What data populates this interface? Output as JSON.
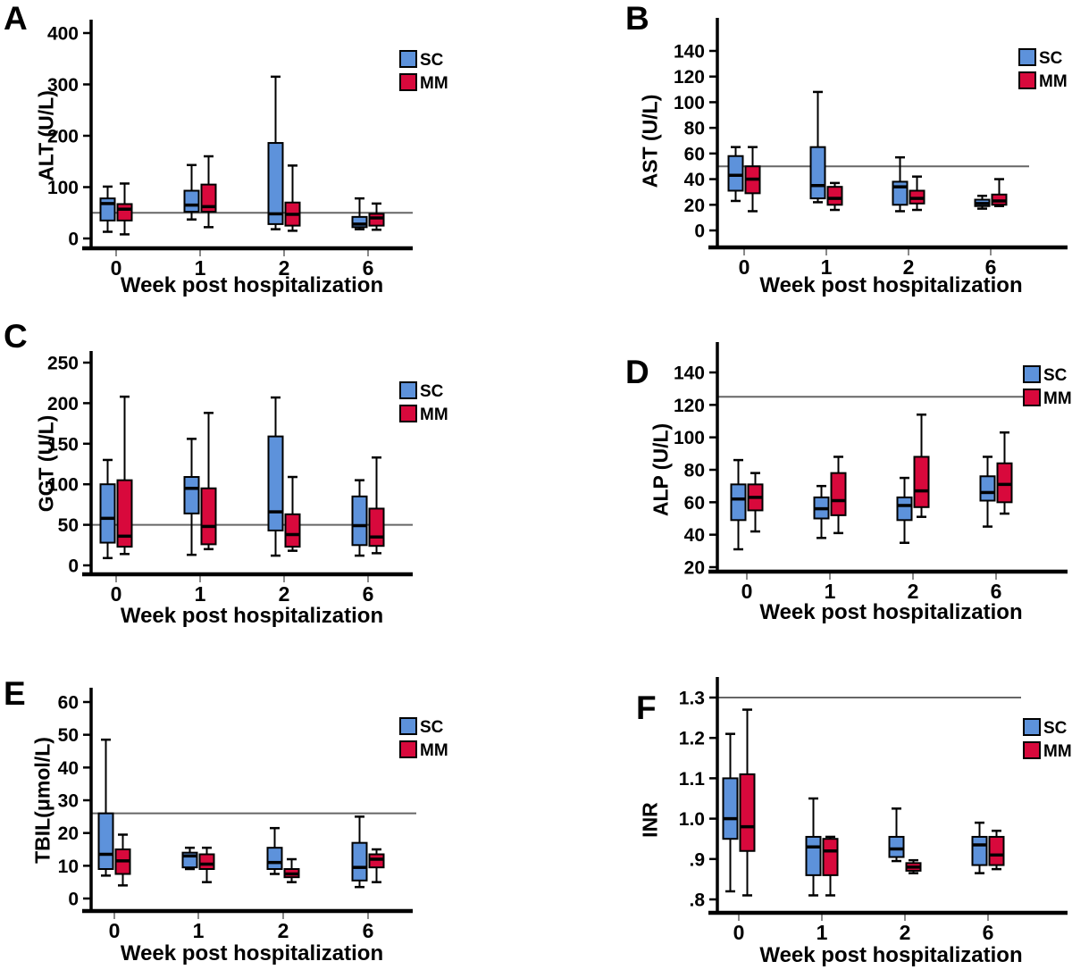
{
  "figure": {
    "legend_labels": [
      "SC",
      "MM"
    ],
    "series_colors": {
      "SC": "#5D92DB",
      "MM": "#D8093C"
    },
    "colors": {
      "box_border": "#000000",
      "median": "#000000",
      "axis": "#000000",
      "reference_line": "#666666",
      "x_tick": "#8a8a8a",
      "background": "#ffffff"
    },
    "xlabel": "Week post hospitalization",
    "week_categories": [
      "0",
      "1",
      "2",
      "6"
    ]
  },
  "chart_data": [
    {
      "type": "box",
      "panel": "A",
      "ylabel": "ALT (U/L)",
      "xlabel": "Week post hospitalization",
      "categories": [
        "0",
        "1",
        "2",
        "6"
      ],
      "ytick_values": [
        0,
        100,
        200,
        300,
        400
      ],
      "ytick_labels": [
        "0",
        "100",
        "200",
        "300",
        "400"
      ],
      "refline": 50,
      "legend": [
        "SC",
        "MM"
      ],
      "series": [
        {
          "name": "SC",
          "boxes": [
            {
              "whislo": 13,
              "q1": 35,
              "med": 68,
              "q3": 78,
              "whishi": 101
            },
            {
              "whislo": 37,
              "q1": 52,
              "med": 65,
              "q3": 93,
              "whishi": 143
            },
            {
              "whislo": 18,
              "q1": 28,
              "med": 48,
              "q3": 186,
              "whishi": 315
            },
            {
              "whislo": 18,
              "q1": 22,
              "med": 28,
              "q3": 42,
              "whishi": 78
            }
          ]
        },
        {
          "name": "MM",
          "boxes": [
            {
              "whislo": 8,
              "q1": 35,
              "med": 57,
              "q3": 67,
              "whishi": 107
            },
            {
              "whislo": 22,
              "q1": 52,
              "med": 62,
              "q3": 105,
              "whishi": 160
            },
            {
              "whislo": 15,
              "q1": 25,
              "med": 47,
              "q3": 70,
              "whishi": 142
            },
            {
              "whislo": 17,
              "q1": 25,
              "med": 40,
              "q3": 48,
              "whishi": 68
            }
          ]
        }
      ]
    },
    {
      "type": "box",
      "panel": "B",
      "ylabel": "AST (U/L)",
      "xlabel": "Week post hospitalization",
      "categories": [
        "0",
        "1",
        "2",
        "6"
      ],
      "ytick_values": [
        0,
        20,
        40,
        60,
        80,
        100,
        120,
        140
      ],
      "ytick_labels": [
        "0",
        "20",
        "40",
        "60",
        "80",
        "100",
        "120",
        "140"
      ],
      "refline": 50,
      "legend": [
        "SC",
        "MM"
      ],
      "series": [
        {
          "name": "SC",
          "boxes": [
            {
              "whislo": 23,
              "q1": 31,
              "med": 43,
              "q3": 58,
              "whishi": 65
            },
            {
              "whislo": 22,
              "q1": 25,
              "med": 35,
              "q3": 65,
              "whishi": 108
            },
            {
              "whislo": 15,
              "q1": 20,
              "med": 34,
              "q3": 38,
              "whishi": 57
            },
            {
              "whislo": 17,
              "q1": 19,
              "med": 21,
              "q3": 24,
              "whishi": 27
            }
          ]
        },
        {
          "name": "MM",
          "boxes": [
            {
              "whislo": 15,
              "q1": 29,
              "med": 40,
              "q3": 50,
              "whishi": 65
            },
            {
              "whislo": 16,
              "q1": 20,
              "med": 25,
              "q3": 34,
              "whishi": 37
            },
            {
              "whislo": 16,
              "q1": 21,
              "med": 25,
              "q3": 31,
              "whishi": 42
            },
            {
              "whislo": 19,
              "q1": 20,
              "med": 23,
              "q3": 28,
              "whishi": 40
            }
          ]
        }
      ]
    },
    {
      "type": "box",
      "panel": "C",
      "ylabel": "GGT (U/L)",
      "xlabel": "Week post hospitalization",
      "categories": [
        "0",
        "1",
        "2",
        "6"
      ],
      "ytick_values": [
        0,
        50,
        100,
        150,
        200,
        250
      ],
      "ytick_labels": [
        "0",
        "50",
        "100",
        "150",
        "200",
        "250"
      ],
      "refline": 50,
      "legend": [
        "SC",
        "MM"
      ],
      "series": [
        {
          "name": "SC",
          "boxes": [
            {
              "whislo": 9,
              "q1": 28,
              "med": 58,
              "q3": 100,
              "whishi": 130
            },
            {
              "whislo": 13,
              "q1": 64,
              "med": 95,
              "q3": 109,
              "whishi": 156
            },
            {
              "whislo": 12,
              "q1": 43,
              "med": 66,
              "q3": 159,
              "whishi": 207
            },
            {
              "whislo": 12,
              "q1": 25,
              "med": 49,
              "q3": 85,
              "whishi": 105
            }
          ]
        },
        {
          "name": "MM",
          "boxes": [
            {
              "whislo": 14,
              "q1": 23,
              "med": 36,
              "q3": 105,
              "whishi": 208
            },
            {
              "whislo": 20,
              "q1": 26,
              "med": 48,
              "q3": 95,
              "whishi": 188
            },
            {
              "whislo": 18,
              "q1": 23,
              "med": 38,
              "q3": 63,
              "whishi": 109
            },
            {
              "whislo": 15,
              "q1": 24,
              "med": 35,
              "q3": 70,
              "whishi": 133
            }
          ]
        }
      ]
    },
    {
      "type": "box",
      "panel": "D",
      "ylabel": "ALP (U/L)",
      "xlabel": "Week post hospitalization",
      "categories": [
        "0",
        "1",
        "2",
        "6"
      ],
      "ytick_values": [
        20,
        40,
        60,
        80,
        100,
        120,
        140
      ],
      "ytick_labels": [
        "20",
        "40",
        "60",
        "80",
        "100",
        "120",
        "140"
      ],
      "refline": 125,
      "legend": [
        "SC",
        "MM"
      ],
      "series": [
        {
          "name": "SC",
          "boxes": [
            {
              "whislo": 31,
              "q1": 49,
              "med": 62,
              "q3": 71,
              "whishi": 86
            },
            {
              "whislo": 38,
              "q1": 50,
              "med": 56,
              "q3": 63,
              "whishi": 70
            },
            {
              "whislo": 35,
              "q1": 49,
              "med": 58,
              "q3": 63,
              "whishi": 75
            },
            {
              "whislo": 45,
              "q1": 61,
              "med": 66,
              "q3": 76,
              "whishi": 88
            }
          ]
        },
        {
          "name": "MM",
          "boxes": [
            {
              "whislo": 42,
              "q1": 55,
              "med": 63,
              "q3": 71,
              "whishi": 78
            },
            {
              "whislo": 41,
              "q1": 52,
              "med": 61,
              "q3": 78,
              "whishi": 88
            },
            {
              "whislo": 51,
              "q1": 57,
              "med": 67,
              "q3": 88,
              "whishi": 114
            },
            {
              "whislo": 53,
              "q1": 60,
              "med": 71,
              "q3": 84,
              "whishi": 103
            }
          ]
        }
      ]
    },
    {
      "type": "box",
      "panel": "E",
      "ylabel": "TBIL(μmol/L)",
      "xlabel": "Week post hospitalization",
      "categories": [
        "0",
        "1",
        "2",
        "6"
      ],
      "ytick_values": [
        0,
        10,
        20,
        30,
        40,
        50,
        60
      ],
      "ytick_labels": [
        "0",
        "10",
        "20",
        "30",
        "40",
        "50",
        "60"
      ],
      "refline": 26,
      "legend": [
        "SC",
        "MM"
      ],
      "series": [
        {
          "name": "SC",
          "boxes": [
            {
              "whislo": 7,
              "q1": 9,
              "med": 13.5,
              "q3": 26,
              "whishi": 48.5
            },
            {
              "whislo": 9,
              "q1": 9.5,
              "med": 13,
              "q3": 14,
              "whishi": 15.5
            },
            {
              "whislo": 7.5,
              "q1": 9,
              "med": 11,
              "q3": 15.5,
              "whishi": 21.5
            },
            {
              "whislo": 3.5,
              "q1": 5.5,
              "med": 9.5,
              "q3": 17,
              "whishi": 25
            }
          ]
        },
        {
          "name": "MM",
          "boxes": [
            {
              "whislo": 4,
              "q1": 7.5,
              "med": 11.5,
              "q3": 15,
              "whishi": 19.5
            },
            {
              "whislo": 5,
              "q1": 9,
              "med": 10.5,
              "q3": 13.5,
              "whishi": 15.5
            },
            {
              "whislo": 5,
              "q1": 6.5,
              "med": 7.5,
              "q3": 9,
              "whishi": 12
            },
            {
              "whislo": 5,
              "q1": 9.5,
              "med": 12,
              "q3": 13.5,
              "whishi": 15
            }
          ]
        }
      ]
    },
    {
      "type": "box",
      "panel": "F",
      "ylabel": "INR",
      "xlabel": "Week post hospitalization",
      "categories": [
        "0",
        "1",
        "2",
        "6"
      ],
      "ytick_values": [
        0.8,
        0.9,
        1.0,
        1.1,
        1.2,
        1.3
      ],
      "ytick_labels": [
        ".8",
        ".9",
        "1.0",
        "1.1",
        "1.2",
        "1.3"
      ],
      "refline": 1.3,
      "legend": [
        "SC",
        "MM"
      ],
      "series": [
        {
          "name": "SC",
          "boxes": [
            {
              "whislo": 0.82,
              "q1": 0.95,
              "med": 1.0,
              "q3": 1.1,
              "whishi": 1.21
            },
            {
              "whislo": 0.81,
              "q1": 0.86,
              "med": 0.93,
              "q3": 0.955,
              "whishi": 1.05
            },
            {
              "whislo": 0.895,
              "q1": 0.905,
              "med": 0.925,
              "q3": 0.955,
              "whishi": 1.025
            },
            {
              "whislo": 0.865,
              "q1": 0.885,
              "med": 0.935,
              "q3": 0.955,
              "whishi": 0.99
            }
          ]
        },
        {
          "name": "MM",
          "boxes": [
            {
              "whislo": 0.81,
              "q1": 0.92,
              "med": 0.98,
              "q3": 1.11,
              "whishi": 1.27
            },
            {
              "whislo": 0.81,
              "q1": 0.86,
              "med": 0.92,
              "q3": 0.95,
              "whishi": 0.955
            },
            {
              "whislo": 0.865,
              "q1": 0.871,
              "med": 0.88,
              "q3": 0.89,
              "whishi": 0.897
            },
            {
              "whislo": 0.875,
              "q1": 0.885,
              "med": 0.91,
              "q3": 0.955,
              "whishi": 0.97
            }
          ]
        }
      ]
    }
  ]
}
